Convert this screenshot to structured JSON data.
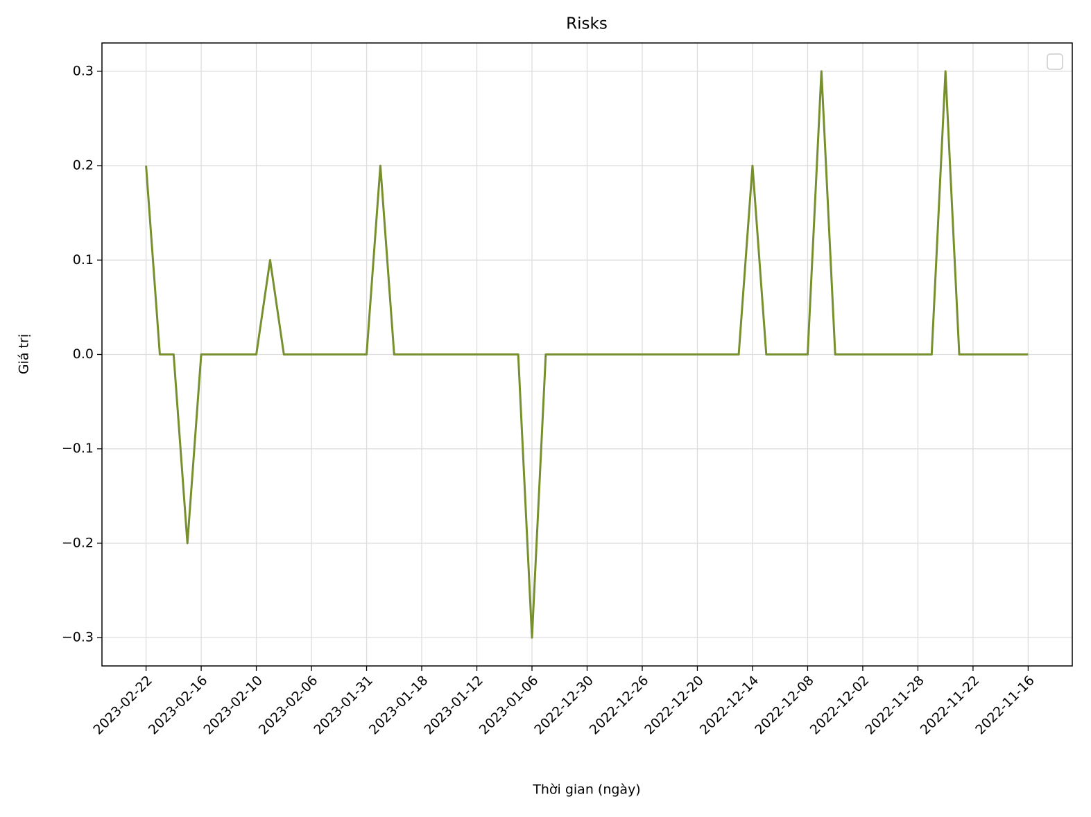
{
  "chart_data": {
    "type": "line",
    "title": "Risks",
    "x_label": "Thời gian (ngày)",
    "y_label": "Giá trị",
    "categories": [
      "2023-02-22",
      null,
      null,
      null,
      "2023-02-16",
      null,
      null,
      null,
      "2023-02-10",
      null,
      null,
      null,
      "2023-02-06",
      null,
      null,
      null,
      "2023-01-31",
      null,
      null,
      null,
      "2023-01-18",
      null,
      null,
      null,
      "2023-01-12",
      null,
      null,
      null,
      "2023-01-06",
      null,
      null,
      null,
      "2022-12-30",
      null,
      null,
      null,
      "2022-12-26",
      null,
      null,
      null,
      "2022-12-20",
      null,
      null,
      null,
      "2022-12-14",
      null,
      null,
      null,
      "2022-12-08",
      null,
      null,
      null,
      "2022-12-02",
      null,
      null,
      null,
      "2022-11-28",
      null,
      null,
      null,
      "2022-11-22",
      null,
      null,
      null,
      "2022-11-16"
    ],
    "values": [
      0.2,
      0,
      0,
      -0.2,
      0,
      0,
      0,
      0,
      0,
      0.1,
      0,
      0,
      0,
      0,
      0,
      0,
      0,
      0.2,
      0,
      0,
      0,
      0,
      0,
      0,
      0,
      0,
      0,
      0,
      -0.3,
      0,
      0,
      0,
      0,
      0,
      0,
      0,
      0,
      0,
      0,
      0,
      0,
      0,
      0,
      0,
      0.2,
      0,
      0,
      0,
      0,
      0.3,
      0,
      0,
      0,
      0,
      0,
      0,
      0,
      0,
      0.3,
      0,
      0,
      0,
      0,
      0,
      0
    ],
    "color": "#77902d",
    "ylim": [
      -0.33,
      0.33
    ],
    "yticks": [
      {
        "value": -0.3,
        "label": "−0.3"
      },
      {
        "value": -0.2,
        "label": "−0.2"
      },
      {
        "value": -0.1,
        "label": "−0.1"
      },
      {
        "value": 0,
        "label": "0.0"
      },
      0.1,
      0.2,
      0.3
    ],
    "grid": true,
    "legend": "upper right"
  }
}
